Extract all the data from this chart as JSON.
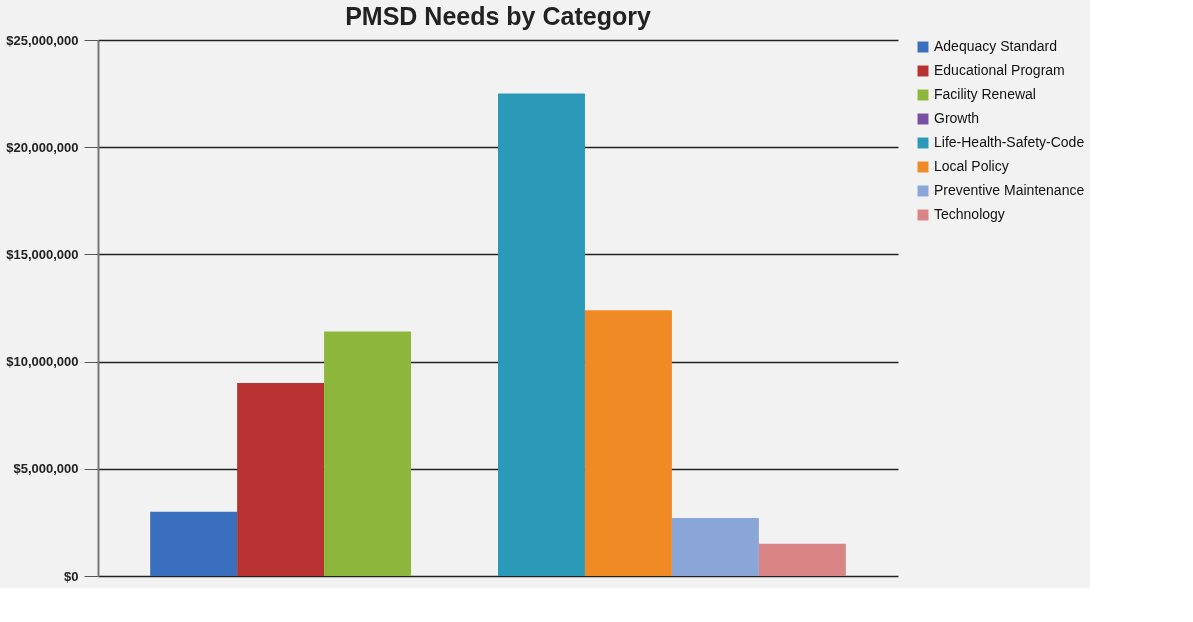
{
  "chart_data": {
    "type": "bar",
    "title": "PMSD Needs by Category",
    "categories": [
      null
    ],
    "series": [
      {
        "name": "Adequacy Standard",
        "color": "#3a6fbf",
        "values": [
          3000000
        ]
      },
      {
        "name": "Educational Program",
        "color": "#b83232",
        "values": [
          9000000
        ]
      },
      {
        "name": "Facility Renewal",
        "color": "#8db63c",
        "values": [
          11400000
        ]
      },
      {
        "name": "Growth",
        "color": "#7a4fa3",
        "values": [
          0
        ]
      },
      {
        "name": "Life-Health-Safety-Code",
        "color": "#2a9ab8",
        "values": [
          22500000
        ]
      },
      {
        "name": "Local Policy",
        "color": "#f08a24",
        "values": [
          12400000
        ]
      },
      {
        "name": "Preventive Maintenance",
        "color": "#8aa6d8",
        "values": [
          2700000
        ]
      },
      {
        "name": "Technology",
        "color": "#d98585",
        "values": [
          1500000
        ]
      }
    ],
    "ylim": [
      0,
      25000000
    ],
    "yticks": [
      {
        "value": 0,
        "label": "$0"
      },
      {
        "value": 5000000,
        "label": "$5,000,000"
      },
      {
        "value": 10000000,
        "label": "$10,000,000"
      },
      {
        "value": 15000000,
        "label": "$15,000,000"
      },
      {
        "value": 20000000,
        "label": "$20,000,000"
      },
      {
        "value": 25000000,
        "label": "$25,000,000"
      }
    ],
    "grid": "y",
    "legend": "right",
    "tick_labels": "y"
  }
}
